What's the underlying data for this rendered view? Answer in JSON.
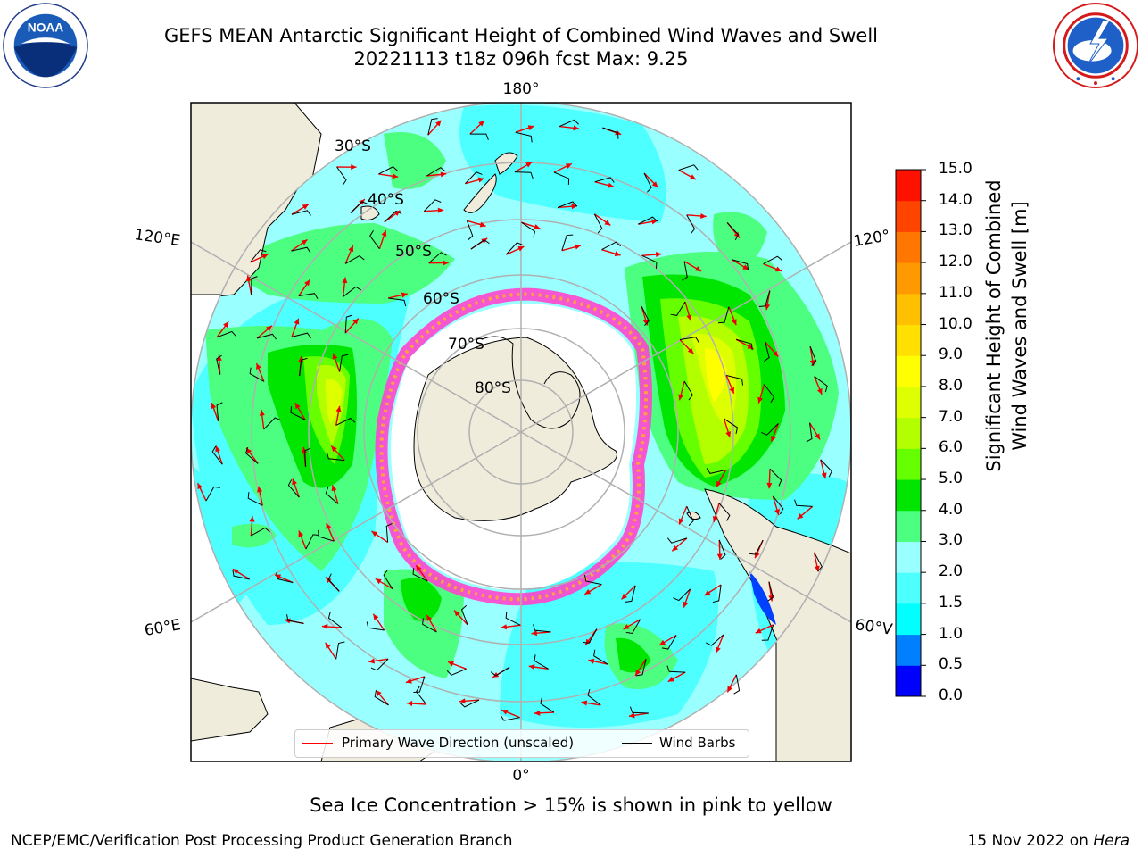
{
  "header": {
    "title_line1": "GEFS MEAN Antarctic Significant Height of Combined Wind Waves and Swell",
    "title_line2": "20221113 t18z 096h fcst   Max: 9.25"
  },
  "logos": {
    "left": {
      "icon": "noaa-logo-icon",
      "text": "NOAA",
      "ring_text": "NATIONAL OCEANIC AND ATMOSPHERIC ADMINISTRATION · U.S. DEPARTMENT OF COMMERCE"
    },
    "right": {
      "icon": "nws-logo-icon",
      "ring_text": "NATIONAL WEATHER SERVICE"
    }
  },
  "map": {
    "projection": "south-polar-stereographic",
    "longitude_labels": {
      "top": "180°",
      "bottom": "0°",
      "upper_left": "120°E",
      "lower_left": "60°E",
      "upper_right": "120°",
      "lower_right": "60°V"
    },
    "latitude_labels": [
      "30°S",
      "40°S",
      "50°S",
      "60°S",
      "70°S",
      "80°S"
    ],
    "colors": {
      "land": "#efecdc",
      "ocean_low": "#99ffff",
      "ocean_mid": "#4dffff",
      "ocean_high": "#4dff80",
      "grid": "#b0b0b0",
      "wave_arrow": "#ee0000",
      "barb": "#000000",
      "ice": "#ff44cc"
    }
  },
  "legend": {
    "items": [
      {
        "label": "Primary Wave Direction (unscaled)",
        "color": "#ff0000"
      },
      {
        "label": "Wind Barbs",
        "color": "#000000"
      }
    ]
  },
  "colorbar": {
    "label_line1": "Significant Height of Combined",
    "label_line2": "Wind Waves and Swell [m]",
    "ticks": [
      "0.0",
      "0.5",
      "1.0",
      "1.5",
      "2.0",
      "3.0",
      "4.0",
      "5.0",
      "6.0",
      "7.0",
      "8.0",
      "9.0",
      "10.0",
      "11.0",
      "12.0",
      "13.0",
      "14.0",
      "15.0"
    ],
    "colors": [
      "#0000ff",
      "#0080ff",
      "#00ffff",
      "#4dffff",
      "#99ffff",
      "#4dff80",
      "#00e600",
      "#66ff00",
      "#b3ff00",
      "#ddff00",
      "#ffff00",
      "#ffe000",
      "#ffc000",
      "#ff9900",
      "#ff7700",
      "#ff4400",
      "#ff1100"
    ]
  },
  "notes": {
    "sea_ice": "Sea Ice Concentration > 15% is shown in pink to yellow"
  },
  "footer": {
    "left": "NCEP/EMC/Verification Post Processing Product Generation Branch",
    "right_date": "15 Nov 2022 on ",
    "right_host": "Hera"
  }
}
